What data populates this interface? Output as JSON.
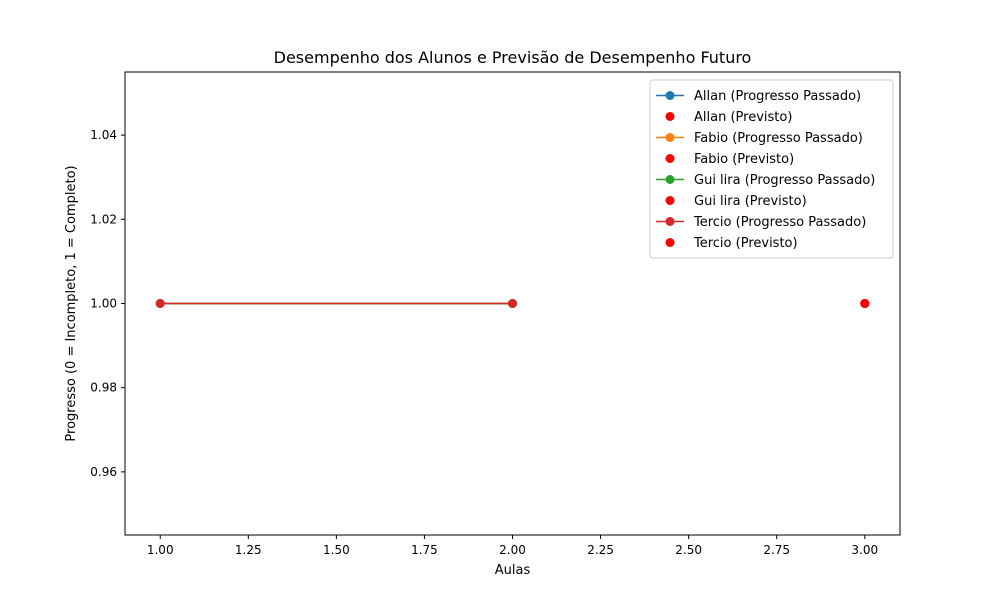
{
  "chart_data": {
    "type": "line",
    "title": "Desempenho dos Alunos e Previsão de Desempenho Futuro",
    "xlabel": "Aulas",
    "ylabel": "Progresso (0 = Incompleto, 1 = Completo)",
    "xlim": [
      0.9,
      3.1
    ],
    "ylim": [
      0.945,
      1.055
    ],
    "x_ticks": [
      1.0,
      1.25,
      1.5,
      1.75,
      2.0,
      2.25,
      2.5,
      2.75,
      3.0
    ],
    "x_tick_labels": [
      "1.00",
      "1.25",
      "1.50",
      "1.75",
      "2.00",
      "2.25",
      "2.50",
      "2.75",
      "3.00"
    ],
    "y_ticks": [
      0.96,
      0.98,
      1.0,
      1.02,
      1.04
    ],
    "y_tick_labels": [
      "0.96",
      "0.98",
      "1.00",
      "1.02",
      "1.04"
    ],
    "grid": false,
    "legend_position": "top-right",
    "series": [
      {
        "name": "Allan (Progresso Passado)",
        "kind": "line",
        "color": "#1f77b4",
        "x": [
          1,
          2
        ],
        "y": [
          1,
          1
        ]
      },
      {
        "name": "Allan (Previsto)",
        "kind": "scatter",
        "color": "#ff0000",
        "x": [
          3
        ],
        "y": [
          1
        ]
      },
      {
        "name": "Fabio (Progresso Passado)",
        "kind": "line",
        "color": "#ff7f0e",
        "x": [
          1,
          2
        ],
        "y": [
          1,
          1
        ]
      },
      {
        "name": "Fabio (Previsto)",
        "kind": "scatter",
        "color": "#ff0000",
        "x": [
          3
        ],
        "y": [
          1
        ]
      },
      {
        "name": "Gui lira (Progresso Passado)",
        "kind": "line",
        "color": "#2ca02c",
        "x": [
          1,
          2
        ],
        "y": [
          1,
          1
        ]
      },
      {
        "name": "Gui lira (Previsto)",
        "kind": "scatter",
        "color": "#ff0000",
        "x": [
          3
        ],
        "y": [
          1
        ]
      },
      {
        "name": "Tercio (Progresso Passado)",
        "kind": "line",
        "color": "#d62728",
        "x": [
          1,
          2
        ],
        "y": [
          1,
          1
        ]
      },
      {
        "name": "Tercio (Previsto)",
        "kind": "scatter",
        "color": "#ff0000",
        "x": [
          3
        ],
        "y": [
          1
        ]
      }
    ]
  }
}
